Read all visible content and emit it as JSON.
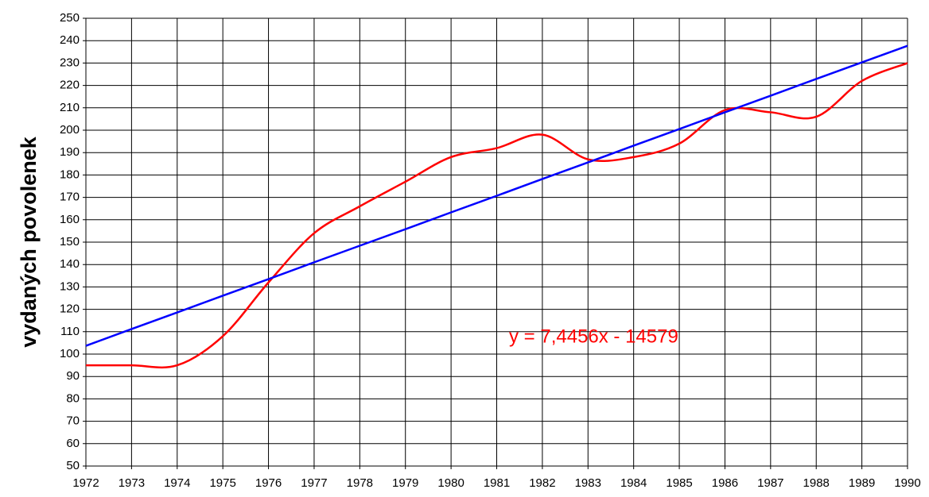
{
  "chart_data": {
    "type": "line",
    "y_label": "vydaných povolenek",
    "annotation": "y = 7,4456x - 14579",
    "x": [
      1972,
      1973,
      1974,
      1975,
      1976,
      1977,
      1978,
      1979,
      1980,
      1981,
      1982,
      1983,
      1984,
      1985,
      1986,
      1987,
      1988,
      1989,
      1990
    ],
    "xlim": [
      1972,
      1990
    ],
    "xticks": [
      1972,
      1973,
      1974,
      1975,
      1976,
      1977,
      1978,
      1979,
      1980,
      1981,
      1982,
      1983,
      1984,
      1985,
      1986,
      1987,
      1988,
      1989,
      1990
    ],
    "ylim": [
      50,
      250
    ],
    "yticks": [
      50,
      60,
      70,
      80,
      90,
      100,
      110,
      120,
      130,
      140,
      150,
      160,
      170,
      180,
      190,
      200,
      210,
      220,
      230,
      240,
      250
    ],
    "grid": true,
    "series": [
      {
        "color": "#ff0000",
        "smooth": true,
        "values": [
          95,
          95,
          95,
          108,
          132,
          154,
          166,
          177,
          188,
          192,
          198,
          187,
          188,
          194,
          209,
          208,
          206,
          222,
          230
        ]
      },
      {
        "color": "#0000ff",
        "smooth": false,
        "values": [
          103.7,
          111.2,
          118.6,
          126.1,
          133.5,
          141.0,
          148.4,
          155.8,
          163.3,
          170.7,
          178.2,
          185.6,
          193.1,
          200.5,
          208.0,
          215.4,
          222.9,
          230.3,
          237.7
        ]
      }
    ]
  }
}
